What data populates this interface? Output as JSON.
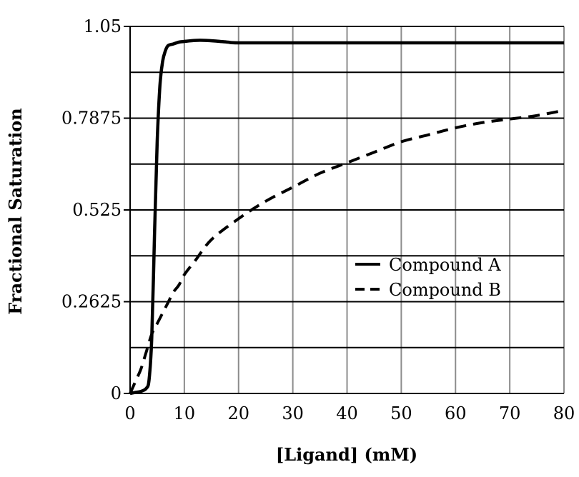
{
  "chart_data": {
    "type": "line",
    "title": "",
    "xlabel": "[Ligand] (mM)",
    "ylabel": "Fractional Saturation",
    "xlim": [
      0,
      80
    ],
    "ylim": [
      0,
      1.05
    ],
    "x_ticks": [
      "0",
      "10",
      "20",
      "30",
      "40",
      "50",
      "60",
      "70",
      "80"
    ],
    "y_ticks": [
      "0",
      "0.2625",
      "0.525",
      "0.7875",
      "1.05"
    ],
    "grid": true,
    "legend_position": "center-right",
    "series": [
      {
        "name": "Compound A",
        "style": "solid",
        "color": "#000000",
        "x": [
          0,
          1,
          2,
          3,
          3.5,
          4,
          4.5,
          5,
          5.5,
          6,
          6.5,
          7,
          8,
          9,
          10,
          12,
          14,
          16,
          18,
          20,
          30,
          40,
          50,
          60,
          70,
          80
        ],
        "y": [
          0,
          0.003,
          0.006,
          0.015,
          0.04,
          0.16,
          0.45,
          0.72,
          0.88,
          0.95,
          0.98,
          0.995,
          1.0,
          1.005,
          1.007,
          1.01,
          1.01,
          1.008,
          1.005,
          1.003,
          1.003,
          1.003,
          1.003,
          1.003,
          1.003,
          1.003
        ]
      },
      {
        "name": "Compound B",
        "style": "dashed",
        "color": "#000000",
        "x": [
          0,
          1,
          2,
          3,
          4,
          5,
          6,
          7,
          8,
          9,
          10,
          12,
          15,
          20,
          25,
          30,
          35,
          40,
          45,
          50,
          55,
          60,
          65,
          70,
          75,
          80
        ],
        "y": [
          0,
          0.035,
          0.07,
          0.12,
          0.17,
          0.2,
          0.23,
          0.26,
          0.29,
          0.31,
          0.34,
          0.38,
          0.44,
          0.5,
          0.55,
          0.59,
          0.63,
          0.66,
          0.69,
          0.72,
          0.74,
          0.76,
          0.775,
          0.785,
          0.795,
          0.81
        ]
      }
    ]
  }
}
